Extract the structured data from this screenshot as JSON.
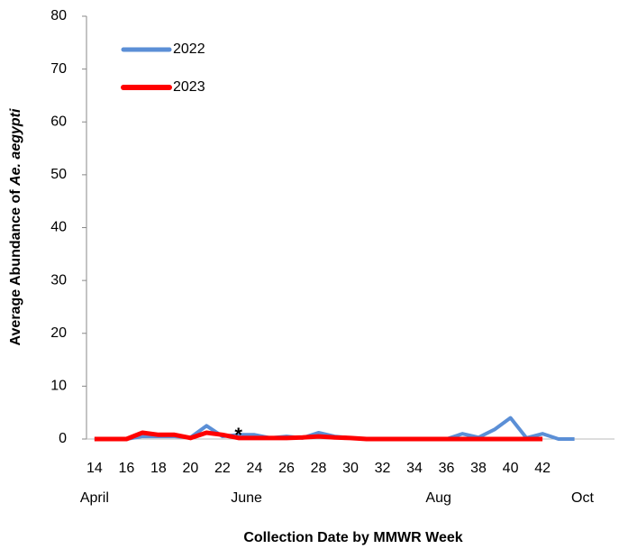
{
  "chart_data": {
    "type": "line",
    "y_label": [
      "Average Abundance of ",
      "Ae. aegypti"
    ],
    "x_label": "Collection Date by MMWR Week",
    "x": [
      14,
      15,
      16,
      17,
      18,
      19,
      20,
      21,
      22,
      23,
      24,
      25,
      26,
      27,
      28,
      29,
      30,
      31,
      32,
      33,
      34,
      35,
      36,
      37,
      38,
      39,
      40,
      41,
      42,
      43,
      44
    ],
    "series": [
      {
        "name": "2022",
        "color": "#5b8fd6",
        "width": 4,
        "values": [
          0,
          0,
          0,
          0.5,
          0.5,
          0.5,
          0.3,
          2.5,
          0.5,
          0.8,
          0.8,
          0.2,
          0.5,
          0.2,
          1.2,
          0.5,
          0.2,
          0,
          0,
          0,
          0,
          0,
          0,
          1,
          0.3,
          1.8,
          4,
          0.2,
          1,
          0,
          0
        ]
      },
      {
        "name": "2023",
        "color": "#ff0000",
        "width": 5,
        "values": [
          0,
          0,
          0,
          1.2,
          0.8,
          0.8,
          0.2,
          1.2,
          0.8,
          0.2,
          0.2,
          0.2,
          0.2,
          0.3,
          0.5,
          0.3,
          0.2,
          0,
          0,
          0,
          0,
          0,
          0,
          0,
          0,
          0,
          0,
          0,
          0,
          null,
          null
        ]
      }
    ],
    "annotations": [
      {
        "text": "*",
        "x": 23,
        "y": 1
      }
    ],
    "xlim": [
      13.5,
      46.5
    ],
    "xticks": [
      14,
      16,
      18,
      20,
      22,
      24,
      26,
      28,
      30,
      32,
      34,
      36,
      38,
      40,
      42
    ],
    "month_ticks": [
      {
        "value": 14,
        "label": "April"
      },
      {
        "value": 23.5,
        "label": "June"
      },
      {
        "value": 35.5,
        "label": "Aug"
      },
      {
        "value": 44.5,
        "label": "Oct"
      }
    ],
    "ylim": [
      0,
      80
    ],
    "yticks": [
      0,
      10,
      20,
      30,
      40,
      50,
      60,
      70,
      80
    ],
    "grid": false,
    "legend": "upper-left"
  }
}
